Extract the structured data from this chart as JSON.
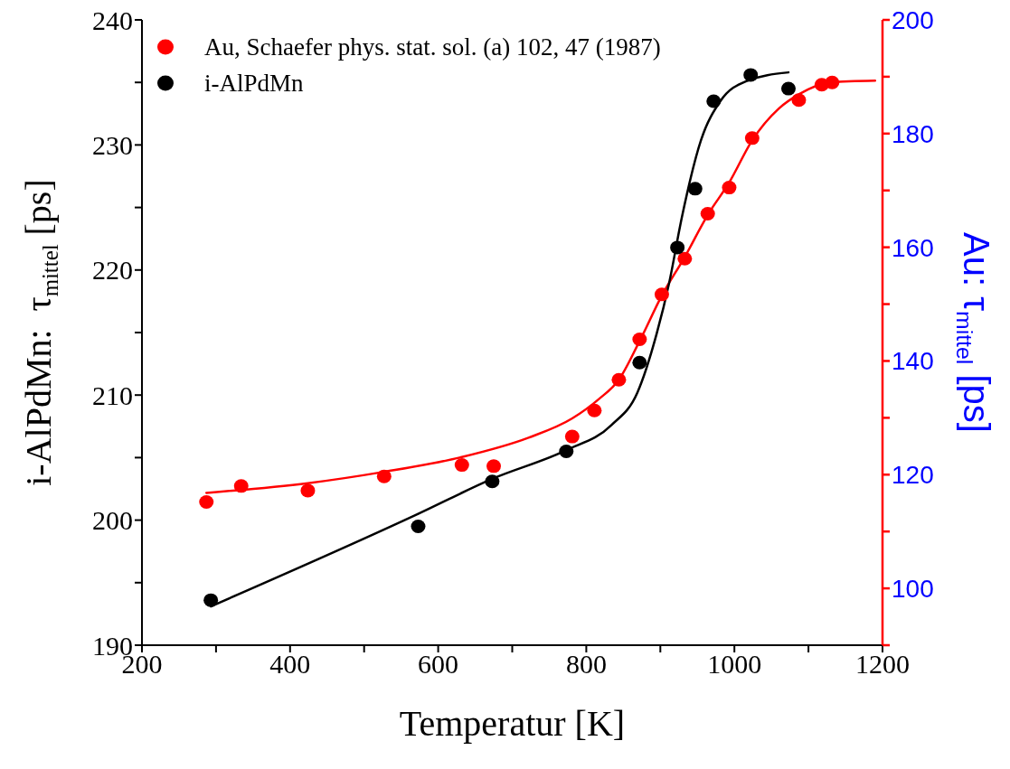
{
  "chart_data": {
    "type": "scatter",
    "xlabel": "Temperatur [K]",
    "ylabel": "i-AlPdMn:  τ$_{mittel}$ [ps]",
    "y2label": "Au: τ$_{mittel}$ [ps]",
    "xlim": [
      200,
      1200
    ],
    "xticks": [
      200,
      {
        "value": 300,
        "label": null
      },
      400,
      {
        "value": 500,
        "label": null
      },
      600,
      {
        "value": 700,
        "label": null
      },
      800,
      {
        "value": 900,
        "label": null
      },
      1000,
      {
        "value": 1100,
        "label": null
      },
      1200
    ],
    "ylim": [
      190,
      240
    ],
    "yticks": [
      190,
      {
        "value": 195,
        "label": null
      },
      200,
      {
        "value": 205,
        "label": null
      },
      210,
      {
        "value": 215,
        "label": null
      },
      220,
      {
        "value": 225,
        "label": null
      },
      230,
      {
        "value": 235,
        "label": null
      },
      240
    ],
    "y2lim": [
      90,
      200
    ],
    "y2ticks": [
      {
        "value": 90,
        "label": null
      },
      100,
      {
        "value": 110,
        "label": null
      },
      120,
      {
        "value": 130,
        "label": null
      },
      140,
      {
        "value": 150,
        "label": null
      },
      160,
      {
        "value": 170,
        "label": null
      },
      180,
      {
        "value": 190,
        "label": null
      },
      200
    ],
    "legend": "top left",
    "series": [
      {
        "name": "Au, Schaefer phys. stat. sol. (a) 102, 47 (1987)",
        "marker": "circle",
        "color": "#ff0000",
        "axis": "y2",
        "x": [
          287,
          334,
          424,
          527,
          632,
          675,
          781,
          811,
          844,
          872,
          902,
          933,
          964,
          993,
          1024,
          1087,
          1118,
          1132
        ],
        "values": [
          115.2,
          118.0,
          117.2,
          119.7,
          121.7,
          121.5,
          126.7,
          131.3,
          136.7,
          143.8,
          151.7,
          158.0,
          165.9,
          170.5,
          179.2,
          185.9,
          188.6,
          189.0
        ]
      },
      {
        "name": "i-AlPdMn",
        "marker": "circle",
        "color": "#000000",
        "x": [
          293,
          573,
          673,
          773,
          872,
          923,
          947,
          972,
          1022,
          1073
        ],
        "values": [
          193.6,
          199.5,
          203.1,
          205.5,
          212.6,
          221.8,
          226.5,
          233.5,
          235.6,
          234.5
        ]
      },
      {
        "type": "line",
        "color": "#ff0000",
        "axis": "y2",
        "x": [
          287,
          424,
          527,
          632,
          722,
          781,
          817,
          844,
          872,
          902,
          933,
          964,
          993,
          1024,
          1060,
          1087,
          1129,
          1190
        ],
        "values": [
          116.8,
          118.5,
          120.5,
          123.1,
          126.5,
          129.9,
          133.3,
          136.7,
          143.5,
          151.5,
          158.3,
          165.7,
          171.4,
          178.8,
          184.4,
          186.9,
          189.0,
          189.3
        ]
      },
      {
        "type": "line",
        "color": "#000000",
        "x": [
          293,
          573,
          673,
          773,
          834,
          869,
          895,
          912,
          929,
          955,
          981,
          1016,
          1073
        ],
        "values": [
          193.1,
          200.5,
          203.3,
          205.6,
          207.6,
          210.2,
          214.9,
          219.0,
          224.2,
          230.4,
          233.5,
          235.1,
          235.8
        ]
      }
    ]
  }
}
